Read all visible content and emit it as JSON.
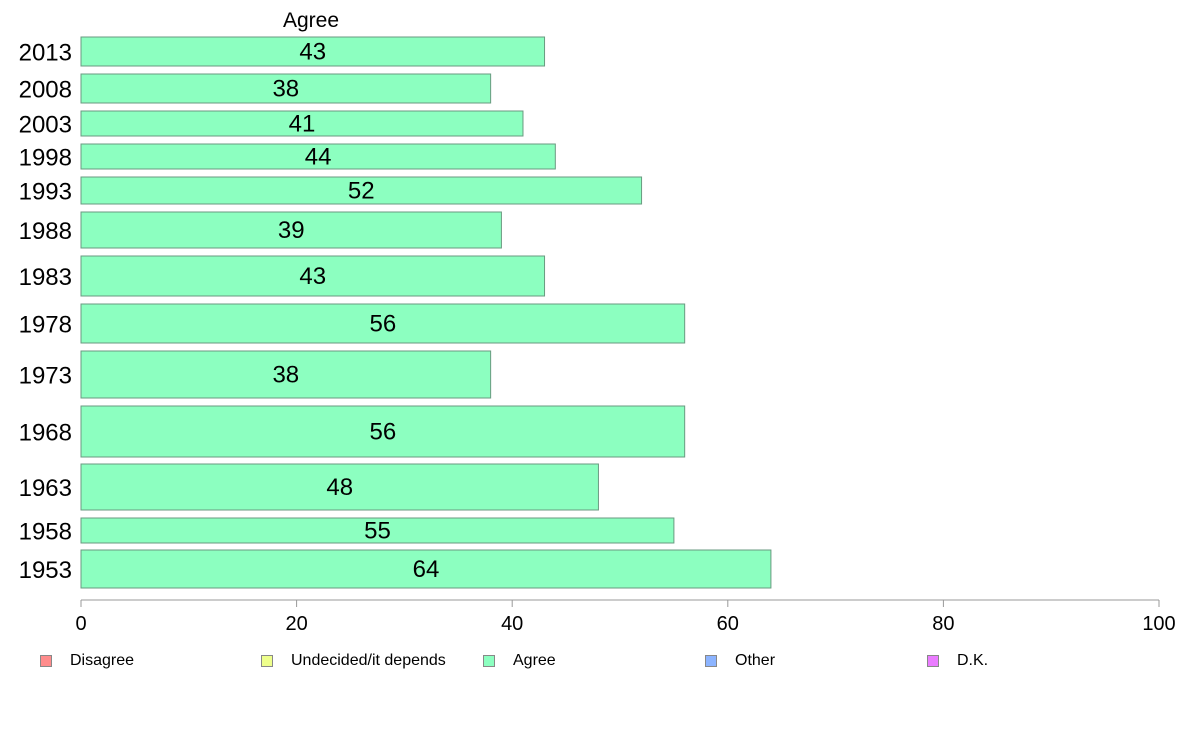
{
  "chart_data": {
    "type": "bar",
    "orientation": "horizontal",
    "series_title": "Agree",
    "categories": [
      "2013",
      "2008",
      "2003",
      "1998",
      "1993",
      "1988",
      "1983",
      "1978",
      "1973",
      "1968",
      "1963",
      "1958",
      "1953"
    ],
    "series": [
      {
        "name": "Agree",
        "values": [
          43,
          38,
          41,
          44,
          52,
          39,
          43,
          56,
          38,
          56,
          48,
          55,
          64
        ],
        "color": "#8cffc0"
      }
    ],
    "value_labels": [
      "43",
      "38",
      "41",
      "44",
      "52",
      "39",
      "43",
      "56",
      "38",
      "56",
      "48",
      "55",
      "64"
    ],
    "xlim": [
      0,
      100
    ],
    "xticks": [
      "0",
      "20",
      "40",
      "60",
      "80",
      "100"
    ],
    "grid": false,
    "legend": {
      "placement": "bottom",
      "items": [
        {
          "label": "Disagree",
          "color": "#ff8c8c"
        },
        {
          "label": "Undecided/it depends",
          "color": "#eeff8c"
        },
        {
          "label": "Agree",
          "color": "#8cffc0"
        },
        {
          "label": "Other",
          "color": "#8cb4ff"
        },
        {
          "label": "D.K.",
          "color": "#ea7cff"
        }
      ]
    }
  }
}
